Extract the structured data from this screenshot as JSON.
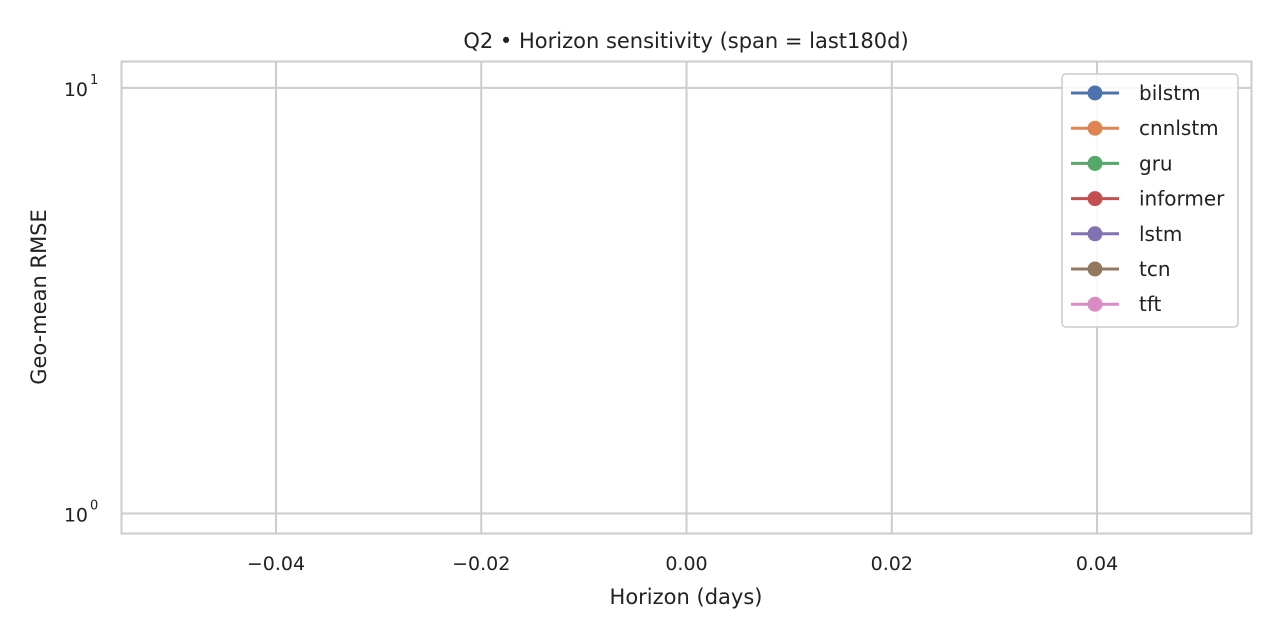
{
  "chart_data": {
    "type": "line",
    "title": "Q2 • Horizon sensitivity (span = last180d)",
    "xlabel": "Horizon (days)",
    "ylabel": "Geo-mean RMSE",
    "xlim": [
      -0.055,
      0.055
    ],
    "xticks": [
      -0.04,
      -0.02,
      0.0,
      0.02,
      0.04
    ],
    "xtick_labels": [
      "−0.04",
      "−0.02",
      "0.00",
      "0.02",
      "0.04"
    ],
    "yscale": "log",
    "ylim": [
      0.9,
      11.5
    ],
    "yticks": [
      {
        "base": "10",
        "exp": "0"
      },
      {
        "base": "10",
        "exp": "1"
      }
    ],
    "grid": true,
    "legend_position": "top-right",
    "series": [
      {
        "name": "bilstm",
        "color": "#4c72b0",
        "x": [],
        "y": []
      },
      {
        "name": "cnnlstm",
        "color": "#dd8452",
        "x": [],
        "y": []
      },
      {
        "name": "gru",
        "color": "#55a868",
        "x": [],
        "y": []
      },
      {
        "name": "informer",
        "color": "#c44e52",
        "x": [],
        "y": []
      },
      {
        "name": "lstm",
        "color": "#8172b3",
        "x": [],
        "y": []
      },
      {
        "name": "tcn",
        "color": "#937860",
        "x": [],
        "y": []
      },
      {
        "name": "tft",
        "color": "#da8bc3",
        "x": [],
        "y": []
      }
    ]
  }
}
